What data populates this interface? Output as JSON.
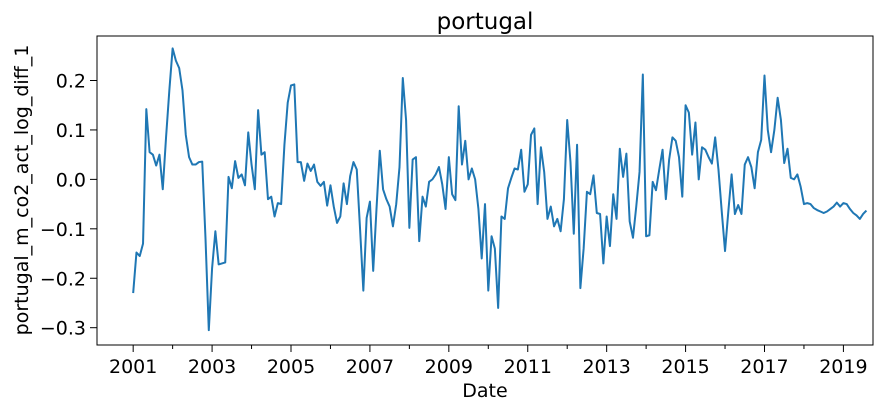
{
  "chart_data": {
    "type": "line",
    "title": "portugal",
    "xlabel": "Date",
    "ylabel": "portugal_m_co2_act_log_diff_1",
    "x_start": "2001-01",
    "x_frequency": "monthly",
    "xlim": [
      "2000-02",
      "2019-10"
    ],
    "ylim": [
      -0.335,
      0.29
    ],
    "x_ticks": [
      {
        "label": "2001",
        "value": "2001-01"
      },
      {
        "label": "2003",
        "value": "2003-01"
      },
      {
        "label": "2005",
        "value": "2005-01"
      },
      {
        "label": "2007",
        "value": "2007-01"
      },
      {
        "label": "2009",
        "value": "2009-01"
      },
      {
        "label": "2011",
        "value": "2011-01"
      },
      {
        "label": "2013",
        "value": "2013-01"
      },
      {
        "label": "2015",
        "value": "2015-01"
      },
      {
        "label": "2017",
        "value": "2017-01"
      },
      {
        "label": "2019",
        "value": "2019-01"
      }
    ],
    "y_ticks": [
      {
        "label": "−0.3",
        "value": -0.3
      },
      {
        "label": "−0.2",
        "value": -0.2
      },
      {
        "label": "−0.1",
        "value": -0.1
      },
      {
        "label": "0.0",
        "value": 0.0
      },
      {
        "label": "0.1",
        "value": 0.1
      },
      {
        "label": "0.2",
        "value": 0.2
      }
    ],
    "grid": false,
    "series": [
      {
        "color": "#1f77b4",
        "values": [
          -0.23,
          -0.148,
          -0.155,
          -0.13,
          0.142,
          0.055,
          0.05,
          0.028,
          0.05,
          -0.02,
          0.085,
          0.18,
          0.265,
          0.24,
          0.225,
          0.18,
          0.09,
          0.045,
          0.03,
          0.03,
          0.035,
          0.036,
          -0.12,
          -0.305,
          -0.18,
          -0.105,
          -0.172,
          -0.17,
          -0.168,
          0.005,
          -0.018,
          0.037,
          0.003,
          0.01,
          -0.012,
          0.095,
          0.03,
          -0.02,
          0.14,
          0.05,
          0.055,
          -0.04,
          -0.035,
          -0.075,
          -0.048,
          -0.05,
          0.07,
          0.155,
          0.19,
          0.192,
          0.035,
          0.035,
          -0.003,
          0.032,
          0.017,
          0.03,
          -0.005,
          -0.013,
          -0.005,
          -0.053,
          -0.012,
          -0.055,
          -0.088,
          -0.075,
          -0.008,
          -0.05,
          0.007,
          0.035,
          0.02,
          -0.1,
          -0.225,
          -0.078,
          -0.045,
          -0.185,
          -0.06,
          0.058,
          -0.02,
          -0.04,
          -0.055,
          -0.095,
          -0.05,
          0.025,
          0.205,
          0.12,
          -0.098,
          0.04,
          0.045,
          -0.125,
          -0.035,
          -0.055,
          -0.005,
          0.0,
          0.01,
          0.025,
          -0.01,
          -0.06,
          0.045,
          -0.03,
          -0.042,
          0.148,
          0.03,
          0.078,
          0.0,
          0.022,
          0.0,
          -0.06,
          -0.16,
          -0.05,
          -0.225,
          -0.115,
          -0.14,
          -0.26,
          -0.075,
          -0.08,
          -0.018,
          0.003,
          0.022,
          0.02,
          0.06,
          -0.025,
          -0.01,
          0.09,
          0.103,
          -0.05,
          0.065,
          0.015,
          -0.08,
          -0.055,
          -0.095,
          -0.08,
          -0.105,
          -0.04,
          0.12,
          0.035,
          -0.11,
          0.07,
          -0.22,
          -0.14,
          -0.025,
          -0.03,
          0.008,
          -0.068,
          -0.07,
          -0.17,
          -0.075,
          -0.135,
          -0.03,
          -0.08,
          0.062,
          0.005,
          0.052,
          -0.085,
          -0.118,
          -0.055,
          0.015,
          0.212,
          -0.115,
          -0.113,
          -0.005,
          -0.022,
          0.02,
          0.06,
          -0.04,
          0.04,
          0.085,
          0.078,
          0.045,
          -0.035,
          0.15,
          0.135,
          0.05,
          0.115,
          0.0,
          0.065,
          0.06,
          0.045,
          0.032,
          0.085,
          0.02,
          -0.065,
          -0.145,
          -0.065,
          0.01,
          -0.07,
          -0.052,
          -0.07,
          0.03,
          0.045,
          0.025,
          -0.018,
          0.055,
          0.08,
          0.21,
          0.1,
          0.055,
          0.1,
          0.165,
          0.12,
          0.033,
          0.062,
          0.003,
          0.0,
          0.01,
          -0.015,
          -0.05,
          -0.048,
          -0.05,
          -0.058,
          -0.062,
          -0.065,
          -0.068,
          -0.065,
          -0.06,
          -0.055,
          -0.047,
          -0.055,
          -0.048,
          -0.05,
          -0.06,
          -0.068,
          -0.073,
          -0.08,
          -0.07,
          -0.063
        ]
      }
    ]
  }
}
